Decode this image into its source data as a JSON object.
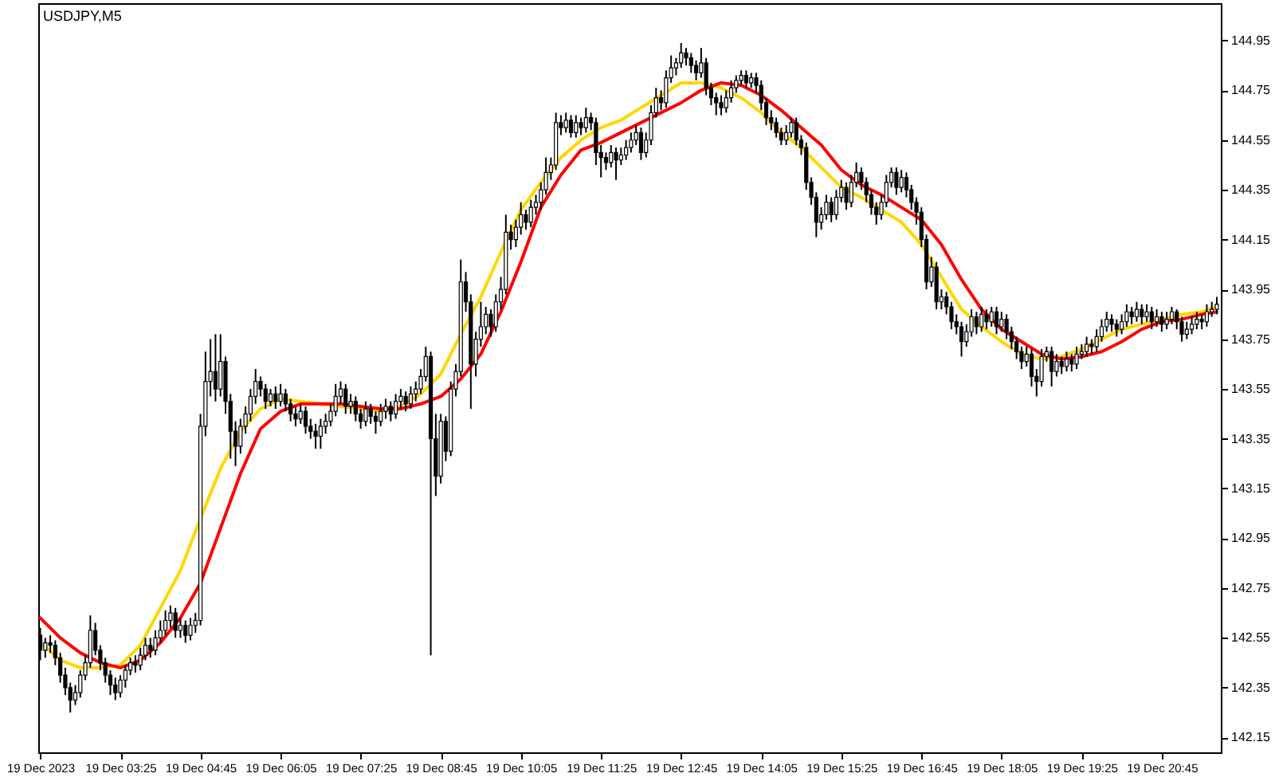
{
  "chart_data": {
    "type": "candlestick",
    "title": "USDJPY,M5",
    "color": "#000000",
    "x": [
      "2023-12-19T02:05",
      "2023-12-19T02:10",
      "2023-12-19T02:15",
      "2023-12-19T02:20",
      "2023-12-19T02:25",
      "2023-12-19T02:30",
      "2023-12-19T02:35",
      "2023-12-19T02:40",
      "2023-12-19T02:45",
      "2023-12-19T02:50",
      "2023-12-19T02:55",
      "2023-12-19T03:00",
      "2023-12-19T03:05",
      "2023-12-19T03:10",
      "2023-12-19T03:15",
      "2023-12-19T03:20",
      "2023-12-19T03:25",
      "2023-12-19T03:30",
      "2023-12-19T03:35",
      "2023-12-19T03:40",
      "2023-12-19T03:45",
      "2023-12-19T03:50",
      "2023-12-19T03:55",
      "2023-12-19T04:00",
      "2023-12-19T04:05",
      "2023-12-19T04:10",
      "2023-12-19T04:15",
      "2023-12-19T04:20",
      "2023-12-19T04:25",
      "2023-12-19T04:30",
      "2023-12-19T04:35",
      "2023-12-19T04:40",
      "2023-12-19T04:45",
      "2023-12-19T04:50",
      "2023-12-19T04:55",
      "2023-12-19T05:00",
      "2023-12-19T05:05",
      "2023-12-19T05:10",
      "2023-12-19T05:15",
      "2023-12-19T05:20",
      "2023-12-19T05:25",
      "2023-12-19T05:30",
      "2023-12-19T05:35",
      "2023-12-19T05:40",
      "2023-12-19T05:45",
      "2023-12-19T05:50",
      "2023-12-19T05:55",
      "2023-12-19T06:00",
      "2023-12-19T06:05",
      "2023-12-19T06:10",
      "2023-12-19T06:15",
      "2023-12-19T06:20",
      "2023-12-19T06:25",
      "2023-12-19T06:30",
      "2023-12-19T06:35",
      "2023-12-19T06:40",
      "2023-12-19T06:45",
      "2023-12-19T06:50",
      "2023-12-19T06:55",
      "2023-12-19T07:00",
      "2023-12-19T07:05",
      "2023-12-19T07:10",
      "2023-12-19T07:15",
      "2023-12-19T07:20",
      "2023-12-19T07:25",
      "2023-12-19T07:30",
      "2023-12-19T07:35",
      "2023-12-19T07:40",
      "2023-12-19T07:45",
      "2023-12-19T07:50",
      "2023-12-19T07:55",
      "2023-12-19T08:00",
      "2023-12-19T08:05",
      "2023-12-19T08:10",
      "2023-12-19T08:15",
      "2023-12-19T08:20",
      "2023-12-19T08:25",
      "2023-12-19T08:30",
      "2023-12-19T08:35",
      "2023-12-19T08:40",
      "2023-12-19T08:45",
      "2023-12-19T08:50",
      "2023-12-19T08:55",
      "2023-12-19T09:00",
      "2023-12-19T09:05",
      "2023-12-19T09:10",
      "2023-12-19T09:15",
      "2023-12-19T09:20",
      "2023-12-19T09:25",
      "2023-12-19T09:30",
      "2023-12-19T09:35",
      "2023-12-19T09:40",
      "2023-12-19T09:45",
      "2023-12-19T09:50",
      "2023-12-19T09:55",
      "2023-12-19T10:00",
      "2023-12-19T10:05",
      "2023-12-19T10:10",
      "2023-12-19T10:15",
      "2023-12-19T10:20",
      "2023-12-19T10:25",
      "2023-12-19T10:30",
      "2023-12-19T10:35",
      "2023-12-19T10:40",
      "2023-12-19T10:45",
      "2023-12-19T10:50",
      "2023-12-19T10:55",
      "2023-12-19T11:00",
      "2023-12-19T11:05",
      "2023-12-19T11:10",
      "2023-12-19T11:15",
      "2023-12-19T11:20",
      "2023-12-19T11:25",
      "2023-12-19T11:30",
      "2023-12-19T11:35",
      "2023-12-19T11:40",
      "2023-12-19T11:45",
      "2023-12-19T11:50",
      "2023-12-19T11:55",
      "2023-12-19T12:00",
      "2023-12-19T12:05",
      "2023-12-19T12:10",
      "2023-12-19T12:15",
      "2023-12-19T12:20",
      "2023-12-19T12:25",
      "2023-12-19T12:30",
      "2023-12-19T12:35",
      "2023-12-19T12:40",
      "2023-12-19T12:45",
      "2023-12-19T12:50",
      "2023-12-19T12:55",
      "2023-12-19T13:00",
      "2023-12-19T13:05",
      "2023-12-19T13:10",
      "2023-12-19T13:15",
      "2023-12-19T13:20",
      "2023-12-19T13:25",
      "2023-12-19T13:30",
      "2023-12-19T13:35",
      "2023-12-19T13:40",
      "2023-12-19T13:45",
      "2023-12-19T13:50",
      "2023-12-19T13:55",
      "2023-12-19T14:00",
      "2023-12-19T14:05",
      "2023-12-19T14:10",
      "2023-12-19T14:15",
      "2023-12-19T14:20",
      "2023-12-19T14:25",
      "2023-12-19T14:30",
      "2023-12-19T14:35",
      "2023-12-19T14:40",
      "2023-12-19T14:45",
      "2023-12-19T14:50",
      "2023-12-19T14:55",
      "2023-12-19T15:00",
      "2023-12-19T15:05",
      "2023-12-19T15:10",
      "2023-12-19T15:15",
      "2023-12-19T15:20",
      "2023-12-19T15:25",
      "2023-12-19T15:30",
      "2023-12-19T15:35",
      "2023-12-19T15:40",
      "2023-12-19T15:45",
      "2023-12-19T15:50",
      "2023-12-19T15:55",
      "2023-12-19T16:00",
      "2023-12-19T16:05",
      "2023-12-19T16:10",
      "2023-12-19T16:15",
      "2023-12-19T16:20",
      "2023-12-19T16:25",
      "2023-12-19T16:30",
      "2023-12-19T16:35",
      "2023-12-19T16:40",
      "2023-12-19T16:45",
      "2023-12-19T16:50",
      "2023-12-19T16:55",
      "2023-12-19T17:00",
      "2023-12-19T17:05",
      "2023-12-19T17:10",
      "2023-12-19T17:15",
      "2023-12-19T17:20",
      "2023-12-19T17:25",
      "2023-12-19T17:30",
      "2023-12-19T17:35",
      "2023-12-19T17:40",
      "2023-12-19T17:45",
      "2023-12-19T17:50",
      "2023-12-19T17:55",
      "2023-12-19T18:00",
      "2023-12-19T18:05",
      "2023-12-19T18:10",
      "2023-12-19T18:15",
      "2023-12-19T18:20",
      "2023-12-19T18:25",
      "2023-12-19T18:30",
      "2023-12-19T18:35",
      "2023-12-19T18:40",
      "2023-12-19T18:45",
      "2023-12-19T18:50",
      "2023-12-19T18:55",
      "2023-12-19T19:00",
      "2023-12-19T19:05",
      "2023-12-19T19:10",
      "2023-12-19T19:15",
      "2023-12-19T19:20",
      "2023-12-19T19:25",
      "2023-12-19T19:30",
      "2023-12-19T19:35",
      "2023-12-19T19:40",
      "2023-12-19T19:45",
      "2023-12-19T19:50",
      "2023-12-19T19:55",
      "2023-12-19T20:00",
      "2023-12-19T20:05",
      "2023-12-19T20:10",
      "2023-12-19T20:15",
      "2023-12-19T20:20",
      "2023-12-19T20:25",
      "2023-12-19T20:30",
      "2023-12-19T20:35",
      "2023-12-19T20:40",
      "2023-12-19T20:45",
      "2023-12-19T20:50",
      "2023-12-19T20:55",
      "2023-12-19T21:00",
      "2023-12-19T21:05",
      "2023-12-19T21:10",
      "2023-12-19T21:15",
      "2023-12-19T21:20",
      "2023-12-19T21:25",
      "2023-12-19T21:30",
      "2023-12-19T21:35",
      "2023-12-19T21:40"
    ],
    "ohlc": [
      [
        142.56,
        142.59,
        142.46,
        142.5
      ],
      [
        142.5,
        142.55,
        142.47,
        142.53
      ],
      [
        142.53,
        142.56,
        142.49,
        142.52
      ],
      [
        142.52,
        142.54,
        142.44,
        142.47
      ],
      [
        142.47,
        142.49,
        142.37,
        142.4
      ],
      [
        142.4,
        142.43,
        142.32,
        142.35
      ],
      [
        142.35,
        142.37,
        142.25,
        142.3
      ],
      [
        142.3,
        142.36,
        142.28,
        142.33
      ],
      [
        142.33,
        142.42,
        142.31,
        142.4
      ],
      [
        142.4,
        142.48,
        142.38,
        142.45
      ],
      [
        142.45,
        142.64,
        142.43,
        142.58
      ],
      [
        142.58,
        142.61,
        142.48,
        142.5
      ],
      [
        142.5,
        142.52,
        142.42,
        142.45
      ],
      [
        142.45,
        142.47,
        142.37,
        142.4
      ],
      [
        142.4,
        142.42,
        142.32,
        142.36
      ],
      [
        142.36,
        142.39,
        142.3,
        142.33
      ],
      [
        142.33,
        142.4,
        142.31,
        142.38
      ],
      [
        142.38,
        142.44,
        142.35,
        142.42
      ],
      [
        142.42,
        142.47,
        142.4,
        142.45
      ],
      [
        142.45,
        142.48,
        142.41,
        142.44
      ],
      [
        142.44,
        142.51,
        142.42,
        142.48
      ],
      [
        142.48,
        142.55,
        142.46,
        142.52
      ],
      [
        142.52,
        142.55,
        142.47,
        142.5
      ],
      [
        142.5,
        142.58,
        142.48,
        142.55
      ],
      [
        142.55,
        142.62,
        142.53,
        142.58
      ],
      [
        142.58,
        142.66,
        142.56,
        142.62
      ],
      [
        142.62,
        142.68,
        142.59,
        142.65
      ],
      [
        142.65,
        142.67,
        142.55,
        142.58
      ],
      [
        142.58,
        142.63,
        142.55,
        142.6
      ],
      [
        142.6,
        142.62,
        142.53,
        142.56
      ],
      [
        142.56,
        142.63,
        142.54,
        142.6
      ],
      [
        142.6,
        142.65,
        142.57,
        142.62
      ],
      [
        142.62,
        143.45,
        142.6,
        143.4
      ],
      [
        143.4,
        143.7,
        143.36,
        143.58
      ],
      [
        143.58,
        143.75,
        143.52,
        143.62
      ],
      [
        143.62,
        143.77,
        143.5,
        143.55
      ],
      [
        143.55,
        143.77,
        143.52,
        143.66
      ],
      [
        143.66,
        143.68,
        143.45,
        143.5
      ],
      [
        143.5,
        143.53,
        143.27,
        143.38
      ],
      [
        143.38,
        143.42,
        143.24,
        143.32
      ],
      [
        143.32,
        143.43,
        143.29,
        143.4
      ],
      [
        143.4,
        143.48,
        143.37,
        143.45
      ],
      [
        143.45,
        143.55,
        143.42,
        143.52
      ],
      [
        143.52,
        143.63,
        143.49,
        143.58
      ],
      [
        143.58,
        143.6,
        143.52,
        143.55
      ],
      [
        143.55,
        143.57,
        143.47,
        143.5
      ],
      [
        143.5,
        143.55,
        143.48,
        143.53
      ],
      [
        143.53,
        143.56,
        143.47,
        143.5
      ],
      [
        143.5,
        143.57,
        143.48,
        143.53
      ],
      [
        143.53,
        143.55,
        143.46,
        143.49
      ],
      [
        143.49,
        143.51,
        143.42,
        143.45
      ],
      [
        143.45,
        143.48,
        143.4,
        143.43
      ],
      [
        143.43,
        143.49,
        143.41,
        143.46
      ],
      [
        143.46,
        143.48,
        143.37,
        143.4
      ],
      [
        143.4,
        143.43,
        143.35,
        143.38
      ],
      [
        143.38,
        143.41,
        143.31,
        143.36
      ],
      [
        143.36,
        143.43,
        143.31,
        143.4
      ],
      [
        143.4,
        143.45,
        143.37,
        143.42
      ],
      [
        143.42,
        143.49,
        143.4,
        143.46
      ],
      [
        143.46,
        143.57,
        143.44,
        143.52
      ],
      [
        143.52,
        143.58,
        143.49,
        143.55
      ],
      [
        143.55,
        143.57,
        143.45,
        143.48
      ],
      [
        143.48,
        143.53,
        143.45,
        143.5
      ],
      [
        143.5,
        143.52,
        143.42,
        143.45
      ],
      [
        143.45,
        143.47,
        143.39,
        143.42
      ],
      [
        143.42,
        143.5,
        143.4,
        143.47
      ],
      [
        143.47,
        143.49,
        143.41,
        143.44
      ],
      [
        143.44,
        143.46,
        143.37,
        143.42
      ],
      [
        143.42,
        143.49,
        143.4,
        143.46
      ],
      [
        143.46,
        143.51,
        143.43,
        143.48
      ],
      [
        143.48,
        143.5,
        143.42,
        143.45
      ],
      [
        143.45,
        143.53,
        143.43,
        143.5
      ],
      [
        143.5,
        143.55,
        143.47,
        143.52
      ],
      [
        143.52,
        143.54,
        143.46,
        143.49
      ],
      [
        143.49,
        143.56,
        143.47,
        143.53
      ],
      [
        143.53,
        143.58,
        143.5,
        143.55
      ],
      [
        143.55,
        143.63,
        143.53,
        143.6
      ],
      [
        143.6,
        143.72,
        143.58,
        143.68
      ],
      [
        143.68,
        143.7,
        142.48,
        143.35
      ],
      [
        143.35,
        143.45,
        143.12,
        143.2
      ],
      [
        143.2,
        143.45,
        143.17,
        143.42
      ],
      [
        143.42,
        143.44,
        143.26,
        143.3
      ],
      [
        143.3,
        143.58,
        143.28,
        143.55
      ],
      [
        143.55,
        143.65,
        143.52,
        143.62
      ],
      [
        143.62,
        144.07,
        143.6,
        143.98
      ],
      [
        143.98,
        144.02,
        143.86,
        143.9
      ],
      [
        143.9,
        143.93,
        143.47,
        143.65
      ],
      [
        143.65,
        143.78,
        143.6,
        143.75
      ],
      [
        143.75,
        143.9,
        143.72,
        143.8
      ],
      [
        143.8,
        143.88,
        143.77,
        143.85
      ],
      [
        143.85,
        143.87,
        143.76,
        143.8
      ],
      [
        143.8,
        143.93,
        143.78,
        143.9
      ],
      [
        143.9,
        144.0,
        143.87,
        143.95
      ],
      [
        143.95,
        144.25,
        143.93,
        144.18
      ],
      [
        144.18,
        144.21,
        144.11,
        144.15
      ],
      [
        144.15,
        144.23,
        144.12,
        144.2
      ],
      [
        144.2,
        144.3,
        144.17,
        144.25
      ],
      [
        144.25,
        144.27,
        144.19,
        144.22
      ],
      [
        144.22,
        144.31,
        144.2,
        144.28
      ],
      [
        144.28,
        144.33,
        144.25,
        144.3
      ],
      [
        144.3,
        144.38,
        144.27,
        144.35
      ],
      [
        144.35,
        144.48,
        144.33,
        144.42
      ],
      [
        144.42,
        144.48,
        144.39,
        144.45
      ],
      [
        144.45,
        144.66,
        144.43,
        144.62
      ],
      [
        144.62,
        144.65,
        144.57,
        144.6
      ],
      [
        144.6,
        144.66,
        144.58,
        144.63
      ],
      [
        144.63,
        144.65,
        144.56,
        144.58
      ],
      [
        144.58,
        144.65,
        144.56,
        144.62
      ],
      [
        144.62,
        144.64,
        144.57,
        144.6
      ],
      [
        144.6,
        144.68,
        144.58,
        144.64
      ],
      [
        144.64,
        144.66,
        144.59,
        144.62
      ],
      [
        144.62,
        144.64,
        144.45,
        144.5
      ],
      [
        144.5,
        144.53,
        144.4,
        144.48
      ],
      [
        144.48,
        144.5,
        144.43,
        144.46
      ],
      [
        144.46,
        144.53,
        144.44,
        144.5
      ],
      [
        144.5,
        144.52,
        144.39,
        144.47
      ],
      [
        144.47,
        144.52,
        144.45,
        144.49
      ],
      [
        144.49,
        144.55,
        144.47,
        144.52
      ],
      [
        144.52,
        144.58,
        144.5,
        144.55
      ],
      [
        144.55,
        144.61,
        144.53,
        144.58
      ],
      [
        144.58,
        144.6,
        144.47,
        144.5
      ],
      [
        144.5,
        144.58,
        144.48,
        144.55
      ],
      [
        144.55,
        144.69,
        144.53,
        144.66
      ],
      [
        144.66,
        144.76,
        144.64,
        144.72
      ],
      [
        144.72,
        144.75,
        144.67,
        144.7
      ],
      [
        144.7,
        144.83,
        144.68,
        144.8
      ],
      [
        144.8,
        144.89,
        144.78,
        144.84
      ],
      [
        144.84,
        144.88,
        144.81,
        144.86
      ],
      [
        144.86,
        144.94,
        144.84,
        144.9
      ],
      [
        144.9,
        144.92,
        144.85,
        144.88
      ],
      [
        144.88,
        144.9,
        144.82,
        144.85
      ],
      [
        144.85,
        144.87,
        144.79,
        144.82
      ],
      [
        144.82,
        144.92,
        144.8,
        144.86
      ],
      [
        144.86,
        144.88,
        144.73,
        144.76
      ],
      [
        144.76,
        144.78,
        144.69,
        144.72
      ],
      [
        144.72,
        144.74,
        144.65,
        144.7
      ],
      [
        144.7,
        144.73,
        144.65,
        144.68
      ],
      [
        144.68,
        144.75,
        144.66,
        144.72
      ],
      [
        144.72,
        144.79,
        144.7,
        144.76
      ],
      [
        144.76,
        144.81,
        144.74,
        144.79
      ],
      [
        144.79,
        144.83,
        144.77,
        144.81
      ],
      [
        144.81,
        144.83,
        144.76,
        144.78
      ],
      [
        144.78,
        144.82,
        144.76,
        144.8
      ],
      [
        144.8,
        144.82,
        144.74,
        144.77
      ],
      [
        144.77,
        144.79,
        144.67,
        144.7
      ],
      [
        144.7,
        144.72,
        144.61,
        144.64
      ],
      [
        144.64,
        144.67,
        144.59,
        144.62
      ],
      [
        144.62,
        144.64,
        144.56,
        144.58
      ],
      [
        144.58,
        144.6,
        144.53,
        144.55
      ],
      [
        144.55,
        144.61,
        144.53,
        144.58
      ],
      [
        144.58,
        144.64,
        144.56,
        144.62
      ],
      [
        144.62,
        144.64,
        144.53,
        144.55
      ],
      [
        144.55,
        144.57,
        144.49,
        144.52
      ],
      [
        144.52,
        144.54,
        144.35,
        144.38
      ],
      [
        144.38,
        144.4,
        144.29,
        144.32
      ],
      [
        144.32,
        144.34,
        144.16,
        144.22
      ],
      [
        144.22,
        144.28,
        144.19,
        144.25
      ],
      [
        144.25,
        144.33,
        144.23,
        144.3
      ],
      [
        144.3,
        144.32,
        144.22,
        144.25
      ],
      [
        144.25,
        144.35,
        144.23,
        144.32
      ],
      [
        144.32,
        144.39,
        144.3,
        144.36
      ],
      [
        144.36,
        144.38,
        144.27,
        144.3
      ],
      [
        144.3,
        144.41,
        144.28,
        144.38
      ],
      [
        144.38,
        144.46,
        144.36,
        144.42
      ],
      [
        144.42,
        144.44,
        144.35,
        144.38
      ],
      [
        144.38,
        144.4,
        144.3,
        144.33
      ],
      [
        144.33,
        144.35,
        144.25,
        144.28
      ],
      [
        144.28,
        144.3,
        144.21,
        144.25
      ],
      [
        144.25,
        144.33,
        144.23,
        144.3
      ],
      [
        144.3,
        144.41,
        144.28,
        144.38
      ],
      [
        144.38,
        144.44,
        144.36,
        144.42
      ],
      [
        144.42,
        144.44,
        144.33,
        144.36
      ],
      [
        144.36,
        144.43,
        144.34,
        144.4
      ],
      [
        144.4,
        144.42,
        144.32,
        144.35
      ],
      [
        144.35,
        144.37,
        144.27,
        144.3
      ],
      [
        144.3,
        144.32,
        144.21,
        144.26
      ],
      [
        144.26,
        144.28,
        144.12,
        144.15
      ],
      [
        144.15,
        144.17,
        143.95,
        143.98
      ],
      [
        143.98,
        144.08,
        143.96,
        144.04
      ],
      [
        144.04,
        144.06,
        143.87,
        143.9
      ],
      [
        143.9,
        143.95,
        143.87,
        143.92
      ],
      [
        143.92,
        143.94,
        143.85,
        143.88
      ],
      [
        143.88,
        143.9,
        143.79,
        143.82
      ],
      [
        143.82,
        143.85,
        143.77,
        143.8
      ],
      [
        143.8,
        143.82,
        143.68,
        143.74
      ],
      [
        143.74,
        143.81,
        143.72,
        143.78
      ],
      [
        143.78,
        143.87,
        143.76,
        143.84
      ],
      [
        143.84,
        143.86,
        143.77,
        143.8
      ],
      [
        143.8,
        143.88,
        143.78,
        143.85
      ],
      [
        143.85,
        143.87,
        143.79,
        143.82
      ],
      [
        143.82,
        143.88,
        143.8,
        143.86
      ],
      [
        143.86,
        143.88,
        143.77,
        143.8
      ],
      [
        143.8,
        143.86,
        143.78,
        143.83
      ],
      [
        143.83,
        143.85,
        143.75,
        143.78
      ],
      [
        143.78,
        143.8,
        143.71,
        143.74
      ],
      [
        143.74,
        143.76,
        143.67,
        143.7
      ],
      [
        143.7,
        143.72,
        143.63,
        143.66
      ],
      [
        143.66,
        143.72,
        143.64,
        143.69
      ],
      [
        143.69,
        143.71,
        143.56,
        143.6
      ],
      [
        143.6,
        143.63,
        143.52,
        143.58
      ],
      [
        143.58,
        143.71,
        143.56,
        143.68
      ],
      [
        143.68,
        143.72,
        143.66,
        143.7
      ],
      [
        143.7,
        143.72,
        143.56,
        143.62
      ],
      [
        143.62,
        143.69,
        143.6,
        143.66
      ],
      [
        143.66,
        143.68,
        143.61,
        143.64
      ],
      [
        143.64,
        143.7,
        143.62,
        143.67
      ],
      [
        143.67,
        143.69,
        143.62,
        143.65
      ],
      [
        143.65,
        143.72,
        143.63,
        143.69
      ],
      [
        143.69,
        143.73,
        143.67,
        143.7
      ],
      [
        143.7,
        143.76,
        143.68,
        143.73
      ],
      [
        143.73,
        143.75,
        143.69,
        143.72
      ],
      [
        143.72,
        143.79,
        143.7,
        143.76
      ],
      [
        143.76,
        143.83,
        143.74,
        143.8
      ],
      [
        143.8,
        143.86,
        143.78,
        143.83
      ],
      [
        143.83,
        143.85,
        143.78,
        143.81
      ],
      [
        143.81,
        143.83,
        143.76,
        143.79
      ],
      [
        143.79,
        143.85,
        143.77,
        143.82
      ],
      [
        143.82,
        143.89,
        143.8,
        143.86
      ],
      [
        143.86,
        143.88,
        143.81,
        143.84
      ],
      [
        143.84,
        143.9,
        143.82,
        143.87
      ],
      [
        143.87,
        143.89,
        143.81,
        143.84
      ],
      [
        143.84,
        143.89,
        143.82,
        143.86
      ],
      [
        143.86,
        143.88,
        143.79,
        143.82
      ],
      [
        143.82,
        143.87,
        143.8,
        143.84
      ],
      [
        143.84,
        143.86,
        143.78,
        143.81
      ],
      [
        143.81,
        143.86,
        143.79,
        143.83
      ],
      [
        143.83,
        143.88,
        143.81,
        143.86
      ],
      [
        143.86,
        143.87,
        143.79,
        143.82
      ],
      [
        143.82,
        143.84,
        143.74,
        143.77
      ],
      [
        143.77,
        143.82,
        143.75,
        143.79
      ],
      [
        143.79,
        143.84,
        143.77,
        143.81
      ],
      [
        143.81,
        143.86,
        143.79,
        143.83
      ],
      [
        143.83,
        143.85,
        143.79,
        143.82
      ],
      [
        143.82,
        143.89,
        143.8,
        143.86
      ],
      [
        143.86,
        143.9,
        143.84,
        143.87
      ],
      [
        143.87,
        143.92,
        143.85,
        143.89
      ]
    ],
    "series": [
      {
        "type": "line",
        "color": "#ffd700",
        "x": [
          "2023-12-19T02:05",
          "2023-12-19T02:25",
          "2023-12-19T02:45",
          "2023-12-19T03:05",
          "2023-12-19T03:25",
          "2023-12-19T03:45",
          "2023-12-19T04:05",
          "2023-12-19T04:25",
          "2023-12-19T04:45",
          "2023-12-19T05:05",
          "2023-12-19T05:25",
          "2023-12-19T05:45",
          "2023-12-19T06:05",
          "2023-12-19T06:25",
          "2023-12-19T06:45",
          "2023-12-19T07:05",
          "2023-12-19T07:25",
          "2023-12-19T07:45",
          "2023-12-19T08:05",
          "2023-12-19T08:25",
          "2023-12-19T08:45",
          "2023-12-19T09:05",
          "2023-12-19T09:25",
          "2023-12-19T09:45",
          "2023-12-19T10:05",
          "2023-12-19T10:25",
          "2023-12-19T10:45",
          "2023-12-19T11:05",
          "2023-12-19T11:25",
          "2023-12-19T11:45",
          "2023-12-19T12:05",
          "2023-12-19T12:25",
          "2023-12-19T12:45",
          "2023-12-19T13:05",
          "2023-12-19T13:25",
          "2023-12-19T13:45",
          "2023-12-19T14:05",
          "2023-12-19T14:25",
          "2023-12-19T14:45",
          "2023-12-19T15:05",
          "2023-12-19T15:25",
          "2023-12-19T15:45",
          "2023-12-19T16:05",
          "2023-12-19T16:25",
          "2023-12-19T16:45",
          "2023-12-19T17:05",
          "2023-12-19T17:25",
          "2023-12-19T17:45",
          "2023-12-19T18:05",
          "2023-12-19T18:25",
          "2023-12-19T18:45",
          "2023-12-19T19:05",
          "2023-12-19T19:25",
          "2023-12-19T19:45",
          "2023-12-19T20:05",
          "2023-12-19T20:25",
          "2023-12-19T20:45",
          "2023-12-19T21:05",
          "2023-12-19T21:25",
          "2023-12-19T21:40"
        ],
        "values": [
          142.53,
          142.46,
          142.43,
          142.43,
          142.44,
          142.52,
          142.67,
          142.82,
          143.03,
          143.23,
          143.38,
          143.47,
          143.51,
          143.5,
          143.49,
          143.48,
          143.47,
          143.46,
          143.48,
          143.53,
          143.61,
          143.77,
          143.92,
          144.1,
          144.27,
          144.38,
          144.48,
          144.55,
          144.6,
          144.63,
          144.68,
          144.73,
          144.78,
          144.78,
          144.76,
          144.72,
          144.66,
          144.58,
          144.52,
          144.44,
          144.36,
          144.32,
          144.27,
          144.22,
          144.13,
          144.0,
          143.87,
          143.8,
          143.74,
          143.69,
          143.67,
          143.68,
          143.71,
          143.75,
          143.79,
          143.81,
          143.83,
          143.85,
          143.86,
          143.88
        ]
      },
      {
        "type": "line",
        "color": "#ff0000",
        "x": [
          "2023-12-19T02:05",
          "2023-12-19T02:25",
          "2023-12-19T02:45",
          "2023-12-19T03:05",
          "2023-12-19T03:25",
          "2023-12-19T03:45",
          "2023-12-19T04:05",
          "2023-12-19T04:25",
          "2023-12-19T04:45",
          "2023-12-19T05:05",
          "2023-12-19T05:25",
          "2023-12-19T05:45",
          "2023-12-19T06:05",
          "2023-12-19T06:25",
          "2023-12-19T06:45",
          "2023-12-19T07:05",
          "2023-12-19T07:25",
          "2023-12-19T07:45",
          "2023-12-19T08:05",
          "2023-12-19T08:25",
          "2023-12-19T08:45",
          "2023-12-19T09:05",
          "2023-12-19T09:25",
          "2023-12-19T09:45",
          "2023-12-19T10:05",
          "2023-12-19T10:25",
          "2023-12-19T10:45",
          "2023-12-19T11:05",
          "2023-12-19T11:25",
          "2023-12-19T11:45",
          "2023-12-19T12:05",
          "2023-12-19T12:25",
          "2023-12-19T12:45",
          "2023-12-19T13:05",
          "2023-12-19T13:25",
          "2023-12-19T13:45",
          "2023-12-19T14:05",
          "2023-12-19T14:25",
          "2023-12-19T14:45",
          "2023-12-19T15:05",
          "2023-12-19T15:25",
          "2023-12-19T15:45",
          "2023-12-19T16:05",
          "2023-12-19T16:25",
          "2023-12-19T16:45",
          "2023-12-19T17:05",
          "2023-12-19T17:25",
          "2023-12-19T17:45",
          "2023-12-19T18:05",
          "2023-12-19T18:25",
          "2023-12-19T18:45",
          "2023-12-19T19:05",
          "2023-12-19T19:25",
          "2023-12-19T19:45",
          "2023-12-19T20:05",
          "2023-12-19T20:25",
          "2023-12-19T20:45",
          "2023-12-19T21:05",
          "2023-12-19T21:25",
          "2023-12-19T21:40"
        ],
        "values": [
          142.63,
          142.55,
          142.49,
          142.45,
          142.43,
          142.46,
          142.53,
          142.63,
          142.77,
          142.99,
          143.21,
          143.39,
          143.46,
          143.49,
          143.49,
          143.49,
          143.48,
          143.47,
          143.47,
          143.49,
          143.52,
          143.59,
          143.69,
          143.86,
          144.06,
          144.28,
          144.41,
          144.51,
          144.54,
          144.58,
          144.62,
          144.66,
          144.7,
          144.75,
          144.78,
          144.77,
          144.73,
          144.67,
          144.6,
          144.53,
          144.43,
          144.37,
          144.33,
          144.28,
          144.23,
          144.13,
          143.99,
          143.87,
          143.79,
          143.74,
          143.69,
          143.67,
          143.68,
          143.7,
          143.74,
          143.79,
          143.82,
          143.83,
          143.85,
          143.86
        ]
      }
    ],
    "xlim": [
      "2023-12-19T02:03",
      "2023-12-19T21:44"
    ],
    "xticks": [
      {
        "value": "2023-12-19T02:05",
        "label": "19 Dec 2023"
      },
      {
        "value": "2023-12-19T03:25",
        "label": "19 Dec 03:25"
      },
      {
        "value": "2023-12-19T04:45",
        "label": "19 Dec 04:45"
      },
      {
        "value": "2023-12-19T06:05",
        "label": "19 Dec 06:05"
      },
      {
        "value": "2023-12-19T07:25",
        "label": "19 Dec 07:25"
      },
      {
        "value": "2023-12-19T08:45",
        "label": "19 Dec 08:45"
      },
      {
        "value": "2023-12-19T10:05",
        "label": "19 Dec 10:05"
      },
      {
        "value": "2023-12-19T11:25",
        "label": "19 Dec 11:25"
      },
      {
        "value": "2023-12-19T12:45",
        "label": "19 Dec 12:45"
      },
      {
        "value": "2023-12-19T14:05",
        "label": "19 Dec 14:05"
      },
      {
        "value": "2023-12-19T15:25",
        "label": "19 Dec 15:25"
      },
      {
        "value": "2023-12-19T16:45",
        "label": "19 Dec 16:45"
      },
      {
        "value": "2023-12-19T18:05",
        "label": "19 Dec 18:05"
      },
      {
        "value": "2023-12-19T19:25",
        "label": "19 Dec 19:25"
      },
      {
        "value": "2023-12-19T20:45",
        "label": "19 Dec 20:45"
      }
    ],
    "ylim": [
      142.09,
      145.1
    ],
    "yticks": [
      142.15,
      142.35,
      142.55,
      142.75,
      142.95,
      143.15,
      143.35,
      143.55,
      143.75,
      143.95,
      144.15,
      144.35,
      144.55,
      144.75,
      144.95
    ]
  }
}
